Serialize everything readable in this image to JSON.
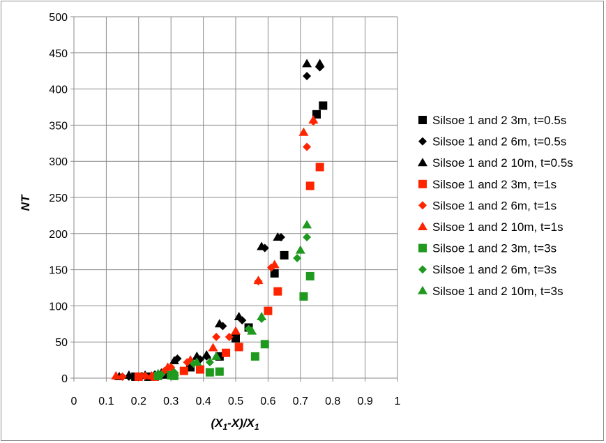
{
  "chart_data": {
    "type": "scatter",
    "title": "",
    "xlabel_main": "(X",
    "xlabel_sub1": "1",
    "xlabel_mid": "-X)/X",
    "xlabel_sub2": "1",
    "ylabel": "NT",
    "xlim": [
      0,
      1
    ],
    "ylim": [
      0,
      500
    ],
    "xticks": [
      "0",
      "0.1",
      "0.2",
      "0.3",
      "0.4",
      "0.5",
      "0.6",
      "0.7",
      "0.8",
      "0.9",
      "1"
    ],
    "yticks": [
      "0",
      "50",
      "100",
      "150",
      "200",
      "250",
      "300",
      "350",
      "400",
      "450",
      "500"
    ],
    "grid": true,
    "legend_position": "right",
    "series": [
      {
        "name": "Silsoe 1 and 2 3m, t=0.5s",
        "color": "#000000",
        "marker": "square",
        "points": [
          [
            0.19,
            2
          ],
          [
            0.23,
            2
          ],
          [
            0.28,
            5
          ],
          [
            0.36,
            15
          ],
          [
            0.45,
            30
          ],
          [
            0.5,
            55
          ],
          [
            0.54,
            70
          ],
          [
            0.62,
            145
          ],
          [
            0.65,
            170
          ],
          [
            0.75,
            365
          ],
          [
            0.77,
            377
          ]
        ]
      },
      {
        "name": "Silsoe 1 and 2 6m, t=0.5s",
        "color": "#000000",
        "marker": "diamond",
        "points": [
          [
            0.15,
            2
          ],
          [
            0.17,
            2
          ],
          [
            0.21,
            3
          ],
          [
            0.25,
            5
          ],
          [
            0.32,
            27
          ],
          [
            0.39,
            26
          ],
          [
            0.41,
            30
          ],
          [
            0.46,
            72
          ],
          [
            0.52,
            80
          ],
          [
            0.59,
            180
          ],
          [
            0.64,
            195
          ],
          [
            0.72,
            418
          ],
          [
            0.76,
            430
          ]
        ]
      },
      {
        "name": "Silsoe 1 and 2 10m, t=0.5s",
        "color": "#000000",
        "marker": "triangle",
        "points": [
          [
            0.14,
            2
          ],
          [
            0.17,
            4
          ],
          [
            0.22,
            4
          ],
          [
            0.27,
            7
          ],
          [
            0.31,
            24
          ],
          [
            0.38,
            30
          ],
          [
            0.41,
            32
          ],
          [
            0.45,
            75
          ],
          [
            0.51,
            85
          ],
          [
            0.58,
            182
          ],
          [
            0.63,
            195
          ],
          [
            0.72,
            435
          ],
          [
            0.76,
            435
          ]
        ]
      },
      {
        "name": "Silsoe 1 and 2 3m, t=1s",
        "color": "#ff2400",
        "marker": "square",
        "points": [
          [
            0.2,
            2
          ],
          [
            0.25,
            2
          ],
          [
            0.34,
            10
          ],
          [
            0.39,
            12
          ],
          [
            0.47,
            35
          ],
          [
            0.51,
            43
          ],
          [
            0.6,
            93
          ],
          [
            0.63,
            120
          ],
          [
            0.73,
            266
          ],
          [
            0.76,
            292
          ]
        ]
      },
      {
        "name": "Silsoe 1 and 2 6m, t=1s",
        "color": "#ff2400",
        "marker": "diamond",
        "points": [
          [
            0.15,
            2
          ],
          [
            0.22,
            3
          ],
          [
            0.28,
            10
          ],
          [
            0.3,
            15
          ],
          [
            0.35,
            22
          ],
          [
            0.44,
            57
          ],
          [
            0.48,
            57
          ],
          [
            0.57,
            134
          ],
          [
            0.61,
            153
          ],
          [
            0.72,
            320
          ],
          [
            0.74,
            355
          ]
        ]
      },
      {
        "name": "Silsoe 1 and 2 10m, t=1s",
        "color": "#ff2400",
        "marker": "triangle",
        "points": [
          [
            0.13,
            3
          ],
          [
            0.24,
            3
          ],
          [
            0.29,
            15
          ],
          [
            0.36,
            25
          ],
          [
            0.43,
            42
          ],
          [
            0.5,
            65
          ],
          [
            0.57,
            135
          ],
          [
            0.62,
            157
          ],
          [
            0.71,
            340
          ],
          [
            0.74,
            357
          ]
        ]
      },
      {
        "name": "Silsoe 1 and 2 3m, t=3s",
        "color": "#1f9a1f",
        "marker": "square",
        "points": [
          [
            0.26,
            3
          ],
          [
            0.3,
            4
          ],
          [
            0.31,
            3
          ],
          [
            0.42,
            8
          ],
          [
            0.45,
            9
          ],
          [
            0.56,
            30
          ],
          [
            0.59,
            47
          ],
          [
            0.71,
            113
          ],
          [
            0.73,
            141
          ]
        ]
      },
      {
        "name": "Silsoe 1 and 2 6m, t=3s",
        "color": "#1f9a1f",
        "marker": "diamond",
        "points": [
          [
            0.27,
            5
          ],
          [
            0.31,
            8
          ],
          [
            0.37,
            20
          ],
          [
            0.42,
            22
          ],
          [
            0.54,
            68
          ],
          [
            0.58,
            82
          ],
          [
            0.69,
            166
          ],
          [
            0.72,
            195
          ]
        ]
      },
      {
        "name": "Silsoe 1 and 2 10m, t=3s",
        "color": "#1f9a1f",
        "marker": "triangle",
        "points": [
          [
            0.26,
            6
          ],
          [
            0.31,
            8
          ],
          [
            0.38,
            22
          ],
          [
            0.44,
            30
          ],
          [
            0.55,
            65
          ],
          [
            0.58,
            85
          ],
          [
            0.7,
            177
          ],
          [
            0.72,
            212
          ]
        ]
      }
    ]
  }
}
